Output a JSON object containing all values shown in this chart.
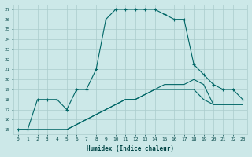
{
  "xlabel": "Humidex (Indice chaleur)",
  "x": [
    0,
    1,
    2,
    3,
    4,
    5,
    6,
    7,
    8,
    9,
    10,
    11,
    12,
    13,
    14,
    15,
    16,
    17,
    18,
    19,
    20,
    21,
    22,
    23
  ],
  "line1": [
    15,
    15,
    18,
    18,
    18,
    17,
    19,
    19,
    21,
    26,
    27,
    27,
    27,
    27,
    27,
    26.5,
    26,
    26,
    21.5,
    20.5,
    19.5,
    19,
    19,
    18
  ],
  "line2": [
    15,
    15,
    15,
    15,
    15,
    15,
    15.5,
    16,
    16.5,
    17,
    17.5,
    18,
    18,
    18.5,
    19,
    19.5,
    19.5,
    19.5,
    20,
    19.5,
    17.5,
    17.5,
    17.5,
    17.5
  ],
  "line3": [
    15,
    15,
    15,
    15,
    15,
    15,
    15.5,
    16,
    16.5,
    17,
    17.5,
    18,
    18,
    18.5,
    19,
    19,
    19,
    19,
    19,
    18,
    17.5,
    17.5,
    17.5,
    17.5
  ],
  "bg_color": "#cce8e8",
  "grid_color": "#aacccc",
  "line_color": "#006666",
  "ylim": [
    14.5,
    27.5
  ],
  "yticks": [
    15,
    16,
    17,
    18,
    19,
    20,
    21,
    22,
    23,
    24,
    25,
    26,
    27
  ],
  "xlim": [
    -0.5,
    23.5
  ],
  "xticks": [
    0,
    1,
    2,
    3,
    4,
    5,
    6,
    7,
    8,
    9,
    10,
    11,
    12,
    13,
    14,
    15,
    16,
    17,
    18,
    19,
    20,
    21,
    22,
    23
  ]
}
